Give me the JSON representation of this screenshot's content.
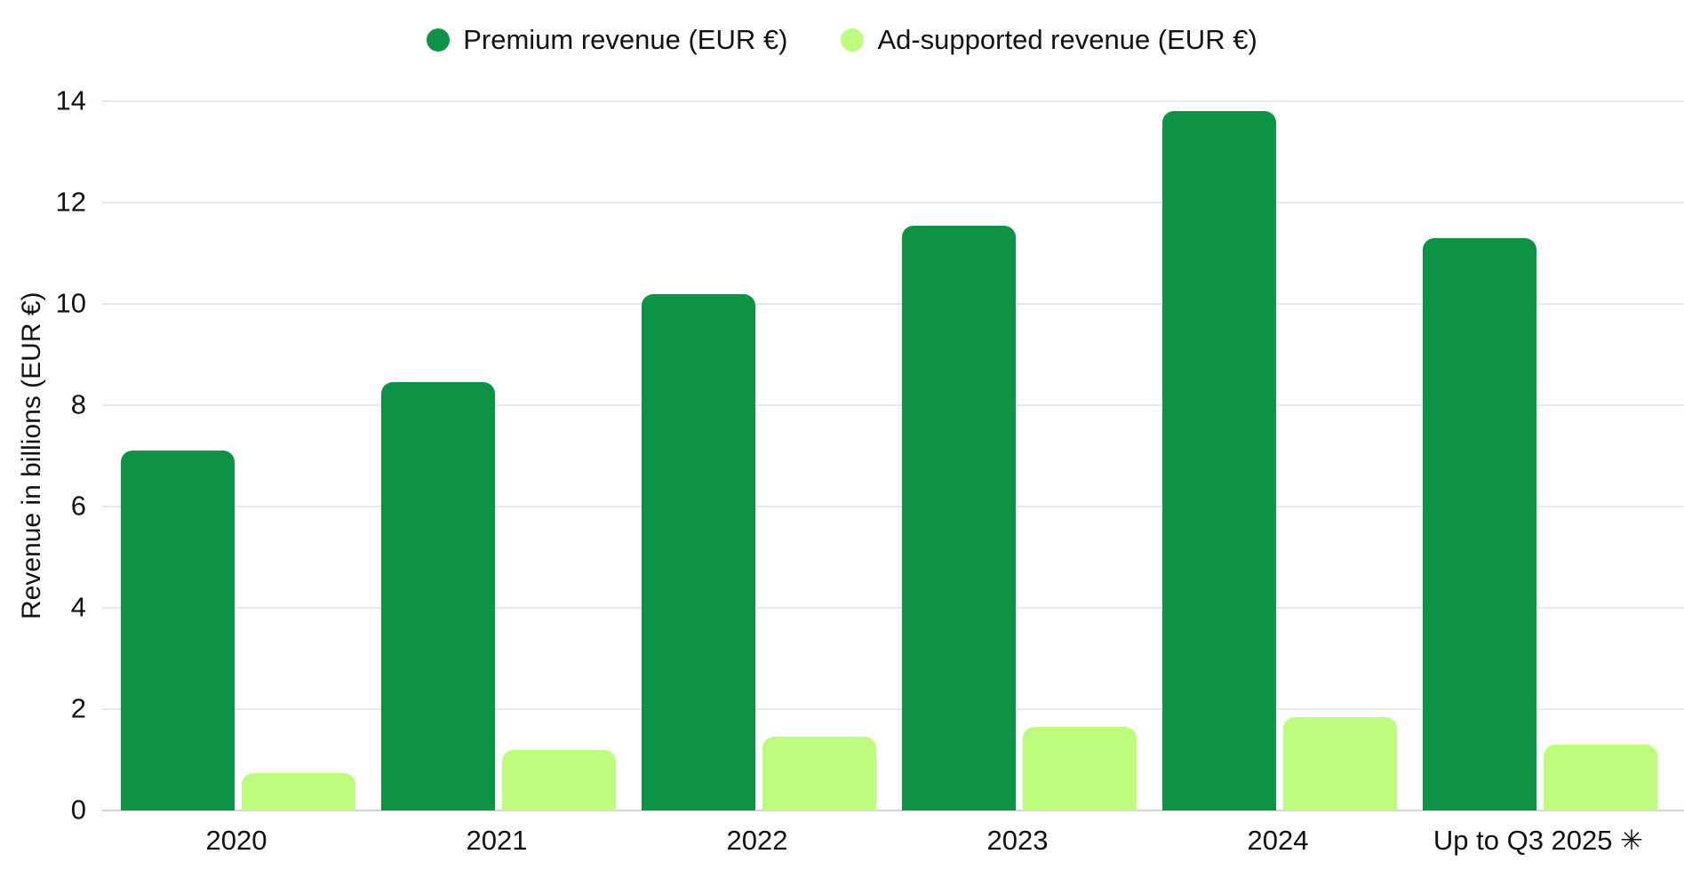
{
  "legend": {
    "items": [
      {
        "label": "Premium revenue (EUR €)"
      },
      {
        "label": "Ad-supported revenue (EUR €)"
      }
    ]
  },
  "colors": {
    "premium": "#0e9346",
    "ad": "#befc7d",
    "gridline": "#e8e8e8",
    "baseline": "#d2d2d2",
    "text": "#111111"
  },
  "chart_data": {
    "type": "bar",
    "title": "",
    "xlabel": "",
    "ylabel": "Revenue in billions (EUR €)",
    "categories": [
      "2020",
      "2021",
      "2022",
      "2023",
      "2024",
      "Up to Q3 2025 ✳"
    ],
    "series": [
      {
        "name": "Premium revenue (EUR €)",
        "color": "#0e9346",
        "values": [
          7.1,
          8.45,
          10.2,
          11.55,
          13.8,
          11.3
        ]
      },
      {
        "name": "Ad-supported revenue (EUR €)",
        "color": "#befc7d",
        "values": [
          0.73,
          1.2,
          1.45,
          1.65,
          1.85,
          1.3
        ]
      }
    ],
    "ylim": [
      0,
      14
    ],
    "yticks": [
      0,
      2,
      4,
      6,
      8,
      10,
      12,
      14
    ],
    "grid": true,
    "legend_position": "top center"
  }
}
